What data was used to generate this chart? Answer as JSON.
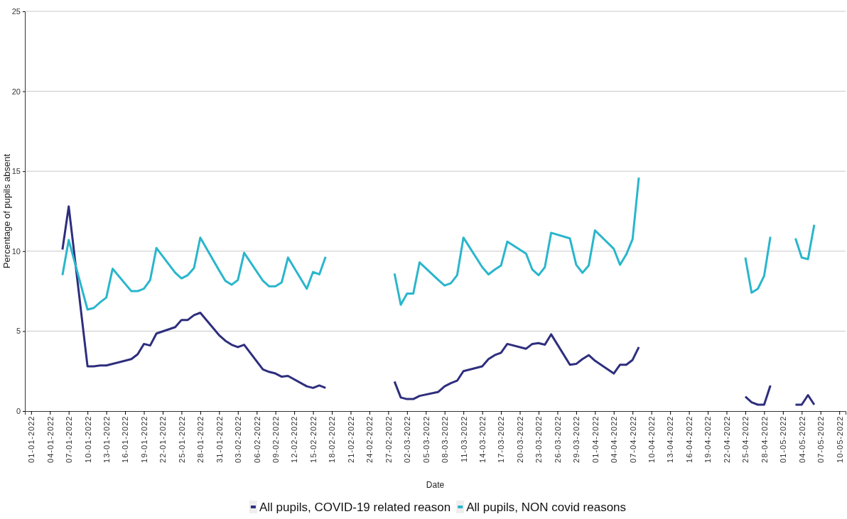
{
  "chart_data": {
    "type": "line",
    "xlabel": "Date",
    "ylabel": "Percentage of pupils absent",
    "x": [
      "2022-01-06",
      "2022-01-07",
      "2022-01-10",
      "2022-01-11",
      "2022-01-12",
      "2022-01-13",
      "2022-01-14",
      "2022-01-17",
      "2022-01-18",
      "2022-01-19",
      "2022-01-20",
      "2022-01-21",
      "2022-01-24",
      "2022-01-25",
      "2022-01-26",
      "2022-01-27",
      "2022-01-28",
      "2022-01-31",
      "2022-02-01",
      "2022-02-02",
      "2022-02-03",
      "2022-02-04",
      "2022-02-07",
      "2022-02-08",
      "2022-02-09",
      "2022-02-10",
      "2022-02-11",
      "2022-02-14",
      "2022-02-15",
      "2022-02-16",
      "2022-02-17",
      "2022-02-21",
      "2022-02-28",
      "2022-03-01",
      "2022-03-02",
      "2022-03-03",
      "2022-03-04",
      "2022-03-07",
      "2022-03-08",
      "2022-03-09",
      "2022-03-10",
      "2022-03-11",
      "2022-03-14",
      "2022-03-15",
      "2022-03-16",
      "2022-03-17",
      "2022-03-18",
      "2022-03-21",
      "2022-03-22",
      "2022-03-23",
      "2022-03-24",
      "2022-03-25",
      "2022-03-28",
      "2022-03-29",
      "2022-03-30",
      "2022-03-31",
      "2022-04-01",
      "2022-04-04",
      "2022-04-05",
      "2022-04-06",
      "2022-04-07",
      "2022-04-08",
      "2022-04-15",
      "2022-04-25",
      "2022-04-26",
      "2022-04-27",
      "2022-04-28",
      "2022-04-29",
      "2022-05-02",
      "2022-05-03",
      "2022-05-04",
      "2022-05-05",
      "2022-05-06"
    ],
    "series": [
      {
        "name": "All pupils, COVID-19 related reason",
        "color": "#2e2e7e",
        "values": [
          10.1,
          12.8,
          2.8,
          2.8,
          2.85,
          2.85,
          2.95,
          3.25,
          3.55,
          4.2,
          4.1,
          4.85,
          5.25,
          5.7,
          5.7,
          6.0,
          6.15,
          4.75,
          4.4,
          4.15,
          4.0,
          4.15,
          2.6,
          2.45,
          2.35,
          2.15,
          2.2,
          1.55,
          1.45,
          1.6,
          1.45,
          null,
          1.85,
          0.85,
          0.75,
          0.75,
          0.95,
          1.2,
          1.55,
          1.75,
          1.9,
          2.5,
          2.8,
          3.25,
          3.5,
          3.65,
          4.2,
          3.9,
          4.2,
          4.25,
          4.15,
          4.8,
          2.9,
          2.95,
          3.25,
          3.5,
          3.15,
          2.35,
          2.9,
          2.9,
          3.2,
          4.0,
          null,
          0.9,
          0.55,
          0.4,
          0.4,
          1.6,
          null,
          0.4,
          0.4,
          1.0,
          0.4
        ]
      },
      {
        "name": "All pupils, NON covid reasons",
        "color": "#29b6cc",
        "values": [
          8.5,
          10.7,
          6.35,
          6.45,
          6.8,
          7.1,
          8.9,
          7.5,
          7.5,
          7.65,
          8.2,
          10.2,
          8.65,
          8.3,
          8.5,
          8.95,
          10.85,
          8.8,
          8.15,
          7.9,
          8.2,
          9.9,
          8.15,
          7.8,
          7.8,
          8.05,
          9.6,
          7.65,
          8.7,
          8.55,
          9.65,
          null,
          8.6,
          6.65,
          7.35,
          7.35,
          9.3,
          8.2,
          7.85,
          8.0,
          8.5,
          10.85,
          9.0,
          8.55,
          8.85,
          9.1,
          10.6,
          9.85,
          8.85,
          8.5,
          9.0,
          11.15,
          10.8,
          9.15,
          8.65,
          9.1,
          11.3,
          10.15,
          9.15,
          9.8,
          10.75,
          14.6,
          null,
          9.6,
          7.4,
          7.65,
          8.45,
          10.9,
          null,
          10.8,
          9.6,
          9.5,
          11.65
        ]
      }
    ],
    "xlim": [
      "2021-12-31",
      "2022-05-11"
    ],
    "xticks": [
      {
        "value": "2022-01-01",
        "label": "01-01-2022"
      },
      {
        "value": "2022-01-04",
        "label": "04-01-2022"
      },
      {
        "value": "2022-01-07",
        "label": "07-01-2022"
      },
      {
        "value": "2022-01-10",
        "label": "10-01-2022"
      },
      {
        "value": "2022-01-13",
        "label": "13-01-2022"
      },
      {
        "value": "2022-01-16",
        "label": "16-01-2022"
      },
      {
        "value": "2022-01-19",
        "label": "19-01-2022"
      },
      {
        "value": "2022-01-22",
        "label": "22-01-2022"
      },
      {
        "value": "2022-01-25",
        "label": "25-01-2022"
      },
      {
        "value": "2022-01-28",
        "label": "28-01-2022"
      },
      {
        "value": "2022-01-31",
        "label": "31-01-2022"
      },
      {
        "value": "2022-02-03",
        "label": "03-02-2022"
      },
      {
        "value": "2022-02-06",
        "label": "06-02-2022"
      },
      {
        "value": "2022-02-09",
        "label": "09-02-2022"
      },
      {
        "value": "2022-02-12",
        "label": "12-02-2022"
      },
      {
        "value": "2022-02-15",
        "label": "15-02-2022"
      },
      {
        "value": "2022-02-18",
        "label": "18-02-2022"
      },
      {
        "value": "2022-02-21",
        "label": "21-02-2022"
      },
      {
        "value": "2022-02-24",
        "label": "24-02-2022"
      },
      {
        "value": "2022-02-27",
        "label": "27-02-2022"
      },
      {
        "value": "2022-03-02",
        "label": "02-03-2022"
      },
      {
        "value": "2022-03-05",
        "label": "05-03-2022"
      },
      {
        "value": "2022-03-08",
        "label": "08-03-2022"
      },
      {
        "value": "2022-03-11",
        "label": "11-03-2022"
      },
      {
        "value": "2022-03-14",
        "label": "14-03-2022"
      },
      {
        "value": "2022-03-17",
        "label": "17-03-2022"
      },
      {
        "value": "2022-03-20",
        "label": "20-03-2022"
      },
      {
        "value": "2022-03-23",
        "label": "23-03-2022"
      },
      {
        "value": "2022-03-26",
        "label": "26-03-2022"
      },
      {
        "value": "2022-03-29",
        "label": "29-03-2022"
      },
      {
        "value": "2022-04-01",
        "label": "01-04-2022"
      },
      {
        "value": "2022-04-04",
        "label": "04-04-2022"
      },
      {
        "value": "2022-04-07",
        "label": "07-04-2022"
      },
      {
        "value": "2022-04-10",
        "label": "10-04-2022"
      },
      {
        "value": "2022-04-13",
        "label": "13-04-2022"
      },
      {
        "value": "2022-04-16",
        "label": "16-04-2022"
      },
      {
        "value": "2022-04-19",
        "label": "19-04-2022"
      },
      {
        "value": "2022-04-22",
        "label": "22-04-2022"
      },
      {
        "value": "2022-04-25",
        "label": "25-04-2022"
      },
      {
        "value": "2022-04-28",
        "label": "28-04-2022"
      },
      {
        "value": "2022-05-01",
        "label": "01-05-2022"
      },
      {
        "value": "2022-05-04",
        "label": "04-05-2022"
      },
      {
        "value": "2022-05-07",
        "label": "07-05-2022"
      },
      {
        "value": "2022-05-10",
        "label": "10-05-2022"
      }
    ],
    "ylim": [
      0,
      25
    ],
    "yticks": [
      0,
      5,
      10,
      15,
      20,
      25
    ],
    "grid": "y",
    "legend": "bottom",
    "line_style": "solid"
  }
}
